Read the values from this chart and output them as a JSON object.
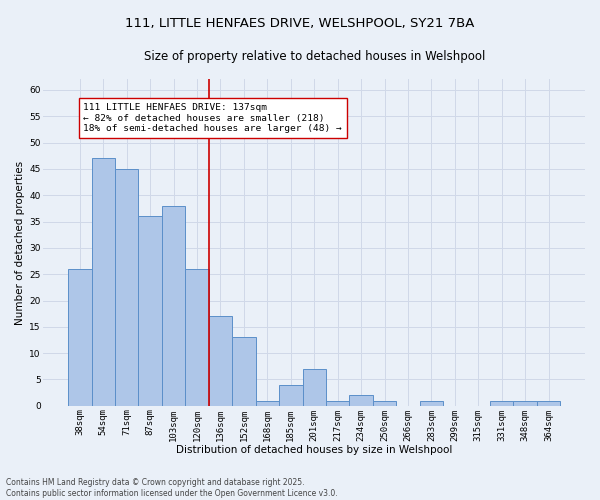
{
  "title_line1": "111, LITTLE HENFAES DRIVE, WELSHPOOL, SY21 7BA",
  "title_line2": "Size of property relative to detached houses in Welshpool",
  "xlabel": "Distribution of detached houses by size in Welshpool",
  "ylabel": "Number of detached properties",
  "bar_labels": [
    "38sqm",
    "54sqm",
    "71sqm",
    "87sqm",
    "103sqm",
    "120sqm",
    "136sqm",
    "152sqm",
    "168sqm",
    "185sqm",
    "201sqm",
    "217sqm",
    "234sqm",
    "250sqm",
    "266sqm",
    "283sqm",
    "299sqm",
    "315sqm",
    "331sqm",
    "348sqm",
    "364sqm"
  ],
  "bar_values": [
    26,
    47,
    45,
    36,
    38,
    26,
    17,
    13,
    1,
    4,
    7,
    1,
    2,
    1,
    0,
    1,
    0,
    0,
    1,
    1,
    1
  ],
  "bar_color": "#aec6e8",
  "bar_edge_color": "#5b8fc9",
  "grid_color": "#d0d8e8",
  "background_color": "#eaf0f8",
  "vline_color": "#cc0000",
  "annotation_text": "111 LITTLE HENFAES DRIVE: 137sqm\n← 82% of detached houses are smaller (218)\n18% of semi-detached houses are larger (48) →",
  "annotation_box_color": "#ffffff",
  "annotation_box_edge": "#cc0000",
  "ylim": [
    0,
    62
  ],
  "yticks": [
    0,
    5,
    10,
    15,
    20,
    25,
    30,
    35,
    40,
    45,
    50,
    55,
    60
  ],
  "footnote": "Contains HM Land Registry data © Crown copyright and database right 2025.\nContains public sector information licensed under the Open Government Licence v3.0.",
  "title_fontsize": 9.5,
  "subtitle_fontsize": 8.5,
  "tick_fontsize": 6.5,
  "ylabel_fontsize": 7.5,
  "xlabel_fontsize": 7.5,
  "annotation_fontsize": 6.8,
  "footnote_fontsize": 5.5
}
